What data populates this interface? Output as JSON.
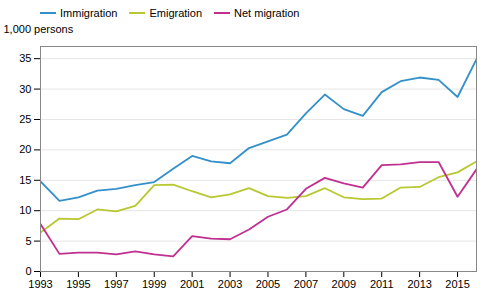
{
  "chart_data": {
    "type": "line",
    "ylabel": "1,000 persons",
    "x": [
      1993,
      1994,
      1995,
      1996,
      1997,
      1998,
      1999,
      2000,
      2001,
      2002,
      2003,
      2004,
      2005,
      2006,
      2007,
      2008,
      2009,
      2010,
      2011,
      2012,
      2013,
      2014,
      2015,
      2016
    ],
    "series": [
      {
        "name": "Immigration",
        "color": "#3490c8",
        "values": [
          14.8,
          11.6,
          12.2,
          13.3,
          13.6,
          14.2,
          14.7,
          16.9,
          19.0,
          18.1,
          17.8,
          20.3,
          21.4,
          22.5,
          26.0,
          29.1,
          26.7,
          25.6,
          29.5,
          31.3,
          31.9,
          31.5,
          28.7,
          34.9
        ]
      },
      {
        "name": "Emigration",
        "color": "#b8c830",
        "values": [
          6.4,
          8.7,
          8.6,
          10.2,
          9.9,
          10.8,
          14.2,
          14.3,
          13.2,
          12.2,
          12.7,
          13.7,
          12.4,
          12.1,
          12.4,
          13.7,
          12.2,
          11.9,
          12.0,
          13.8,
          13.9,
          15.5,
          16.3,
          18.1
        ]
      },
      {
        "name": "Net migration",
        "color": "#c03090",
        "values": [
          7.8,
          2.9,
          3.1,
          3.1,
          2.8,
          3.3,
          2.8,
          2.5,
          5.8,
          5.4,
          5.3,
          6.9,
          9.0,
          10.2,
          13.6,
          15.4,
          14.5,
          13.8,
          17.5,
          17.6,
          18.0,
          18.0,
          12.3,
          16.8
        ]
      }
    ],
    "xlim": [
      1993,
      2016
    ],
    "xticks": [
      1993,
      1995,
      1997,
      1999,
      2001,
      2003,
      2005,
      2007,
      2009,
      2011,
      2013,
      2015
    ],
    "ylim": [
      0,
      37
    ],
    "yticks": [
      0,
      5,
      10,
      15,
      20,
      25,
      30,
      35
    ],
    "grid": true,
    "legend": "upper left"
  }
}
